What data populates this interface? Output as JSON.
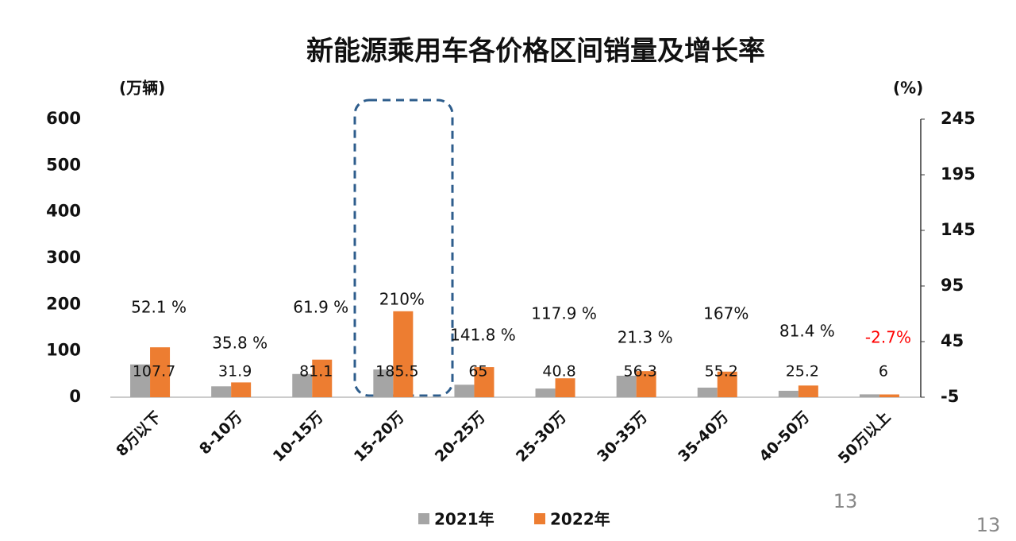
{
  "chart_data": {
    "type": "bar",
    "title": "新能源乘用车各价格区间销量及增长率",
    "y_label": "(万辆)",
    "y2_label": "(%)",
    "categories": [
      "8万以下",
      "8-10万",
      "10-15万",
      "15-20万",
      "20-25万",
      "25-30万",
      "30-35万",
      "35-40万",
      "40-50万",
      "50万以上"
    ],
    "series": [
      {
        "name": "2021年",
        "color": "#a5a5a5",
        "values": [
          70.8,
          23.5,
          50.1,
          59.8,
          26.9,
          18.7,
          46.4,
          20.7,
          13.9,
          6.2
        ]
      },
      {
        "name": "2022年",
        "color": "#ed7d31",
        "values": [
          107.7,
          31.9,
          81.1,
          185.5,
          65,
          40.8,
          56.3,
          55.2,
          25.2,
          6
        ]
      }
    ],
    "annotations": [
      {
        "text": "52.1 %",
        "color": "#111111"
      },
      {
        "text": "35.8 %",
        "color": "#111111"
      },
      {
        "text": "61.9 %",
        "color": "#111111"
      },
      {
        "text": "210%",
        "color": "#111111"
      },
      {
        "text": "141.8 %",
        "color": "#111111"
      },
      {
        "text": "117.9 %",
        "color": "#111111"
      },
      {
        "text": "21.3 %",
        "color": "#111111"
      },
      {
        "text": "167%",
        "color": "#111111"
      },
      {
        "text": "81.4 %",
        "color": "#111111"
      },
      {
        "text": "-2.7%",
        "color": "#ff0000"
      }
    ],
    "ylim": [
      0,
      600
    ],
    "yticks": [
      0,
      100,
      200,
      300,
      400,
      500,
      600
    ],
    "y2lim": [
      -5,
      245
    ],
    "y2ticks": [
      -5,
      45,
      95,
      145,
      195,
      245
    ],
    "page_number": "13"
  }
}
